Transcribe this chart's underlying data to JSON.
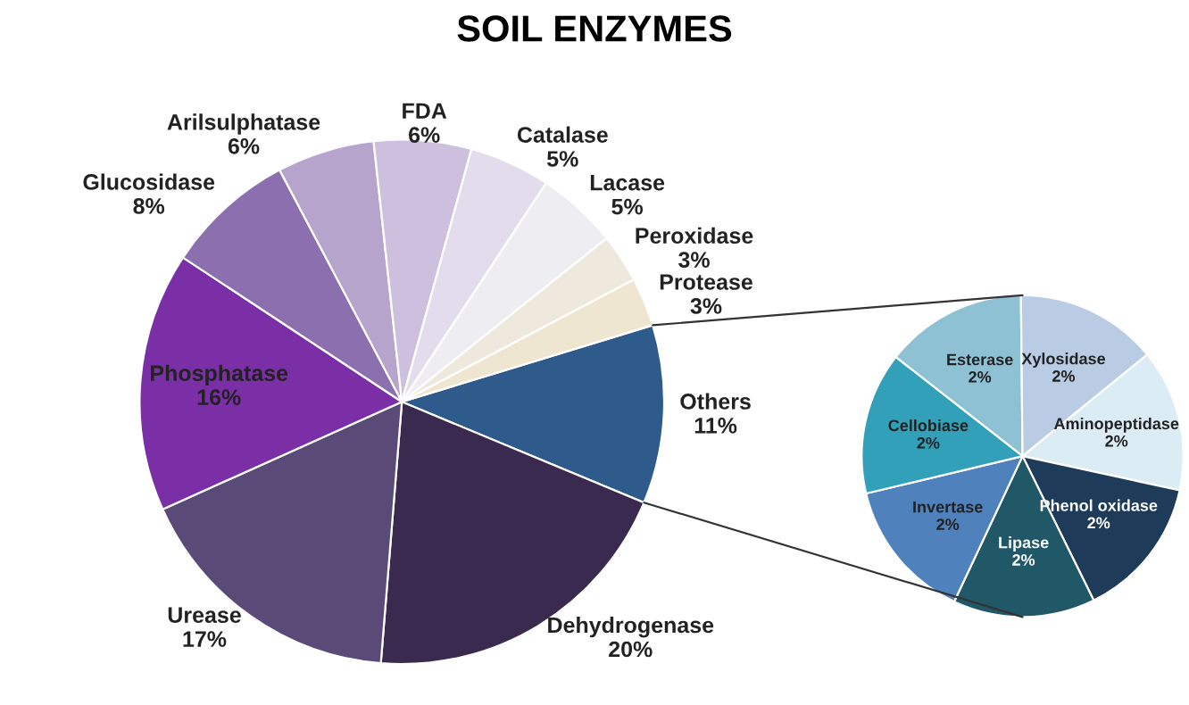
{
  "chart_data": [
    {
      "type": "pie",
      "title": "SOIL ENZYMES",
      "categories": [
        "Others",
        "Dehydrogenase",
        "Urease",
        "Phosphatase",
        "Glucosidase",
        "Arilsulphatase",
        "FDA",
        "Catalase",
        "Lacase",
        "Peroxidase",
        "Protease"
      ],
      "values": [
        11,
        20,
        17,
        16,
        8,
        6,
        6,
        5,
        5,
        3,
        3
      ],
      "value_labels": [
        "11%",
        "20%",
        "17%",
        "16%",
        "8%",
        "6%",
        "6%",
        "5%",
        "5%",
        "3%",
        "3%"
      ],
      "colors": [
        "#2f5b8c",
        "#3b2a50",
        "#5a4a78",
        "#7a2fa6",
        "#8b6fae",
        "#b7a4cc",
        "#cdc0de",
        "#e2dcec",
        "#eeeef2",
        "#eee9dc",
        "#efe6d2"
      ]
    },
    {
      "type": "pie",
      "categories": [
        "Esterase",
        "Xylosidase",
        "Aminopeptidase",
        "Phenol oxidase",
        "Lipase",
        "Invertase",
        "Cellobiase"
      ],
      "values": [
        2,
        2,
        2,
        2,
        2,
        2,
        2
      ],
      "value_labels": [
        "2%",
        "2%",
        "2%",
        "2%",
        "2%",
        "2%",
        "2%"
      ],
      "colors": [
        "#8fc1d4",
        "#b9cce4",
        "#dcecf4",
        "#1f3b5a",
        "#215868",
        "#4f81bd",
        "#31a0b8"
      ]
    }
  ]
}
